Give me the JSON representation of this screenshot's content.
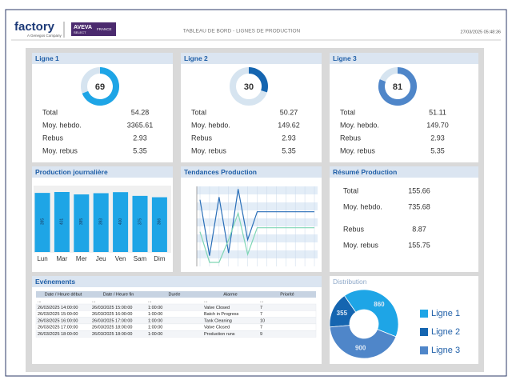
{
  "header": {
    "logo": "factory",
    "logo_tagline": "A Genegos Company",
    "partner": "AVEVA",
    "partner_sub": "SELECT",
    "partner_region": "FRANCE",
    "title": "TABLEAU DE BORD - LIGNES DE PRODUCTION",
    "timestamp": "27/03/2025 05:48:36"
  },
  "gauge_range": [
    0,
    100
  ],
  "lines": [
    {
      "title": "Ligne 1",
      "gauge": 69,
      "color": "#1ea5e6",
      "stats": [
        {
          "label": "Total",
          "value": "54.28"
        },
        {
          "label": "Moy. hebdo.",
          "value": "3365.61"
        },
        {
          "label": "Rebus",
          "value": "2.93"
        },
        {
          "label": "Moy. rebus",
          "value": "5.35"
        }
      ]
    },
    {
      "title": "Ligne 2",
      "gauge": 30,
      "color": "#1565b0",
      "stats": [
        {
          "label": "Total",
          "value": "50.27"
        },
        {
          "label": "Moy. hebdo.",
          "value": "149.62"
        },
        {
          "label": "Rebus",
          "value": "2.93"
        },
        {
          "label": "Moy. rebus",
          "value": "5.35"
        }
      ]
    },
    {
      "title": "Ligne 3",
      "gauge": 81,
      "color": "#4f86c9",
      "stats": [
        {
          "label": "Total",
          "value": "51.11"
        },
        {
          "label": "Moy. hebdo.",
          "value": "149.70"
        },
        {
          "label": "Rebus",
          "value": "2.93"
        },
        {
          "label": "Moy. rebus",
          "value": "5.35"
        }
      ]
    }
  ],
  "daily": {
    "type": "bar",
    "title": "Production journalière",
    "categories": [
      "Lun",
      "Mar",
      "Mer",
      "Jeu",
      "Ven",
      "Sam",
      "Dim"
    ],
    "values": [
      395,
      401,
      385,
      393,
      400,
      375,
      366
    ],
    "color": "#1ea5e6"
  },
  "trends": {
    "type": "line",
    "title": "Tendances Production",
    "categories": [
      null,
      null,
      null,
      null,
      null,
      null,
      null,
      null,
      null,
      null,
      null,
      null,
      null
    ],
    "ylim": [
      0,
      60
    ],
    "series": [
      {
        "color": "#2a6fb8",
        "values": [
          50,
          8,
          52,
          10,
          58,
          20,
          41,
          41,
          41,
          41,
          41,
          41,
          41
        ]
      },
      {
        "color": "#7fd6b5",
        "values": [
          26,
          3,
          3,
          20,
          40,
          9,
          29,
          29,
          29,
          29,
          29,
          29,
          29
        ]
      }
    ]
  },
  "summary": {
    "title": "Résumé Production",
    "stats": [
      {
        "label": "Total",
        "value": "155.66"
      },
      {
        "label": "Moy. hebdo.",
        "value": "735.68"
      },
      {
        "label": "Rebus",
        "value": "8.87"
      },
      {
        "label": "Moy. rebus",
        "value": "155.75"
      }
    ]
  },
  "events": {
    "title": "Evénements",
    "columns": [
      "Date / Heure début",
      "Date / Heure fin",
      "Durée",
      "Alarme",
      "Priorité"
    ],
    "filters": [
      "...",
      "...",
      "...",
      "...",
      "..."
    ],
    "rows": [
      [
        "26/03/2025 14:00:00",
        "26/03/2025 15:00:00",
        "1:00:00",
        "Valve Closed",
        "7"
      ],
      [
        "26/03/2025 15:00:00",
        "26/03/2025 16:00:00",
        "1:00:00",
        "Batch in Progress",
        "7"
      ],
      [
        "26/03/2025 16:00:00",
        "26/03/2025 17:00:00",
        "1:00:00",
        "Tank Cleaning",
        "10"
      ],
      [
        "26/03/2025 17:00:00",
        "26/03/2025 18:00:00",
        "1:00:00",
        "Valve Closed",
        "7"
      ],
      [
        "26/03/2025 18:00:00",
        "26/03/2025 18:00:00",
        "1:00:00",
        "Production runs",
        "9"
      ]
    ]
  },
  "distribution": {
    "type": "pie",
    "title": "Distribution",
    "categories": [
      "Ligne 1",
      "Ligne 2",
      "Ligne 3"
    ],
    "values": [
      860,
      355,
      900
    ],
    "colors": [
      "#1ea5e6",
      "#1565b0",
      "#4f86c9"
    ]
  }
}
